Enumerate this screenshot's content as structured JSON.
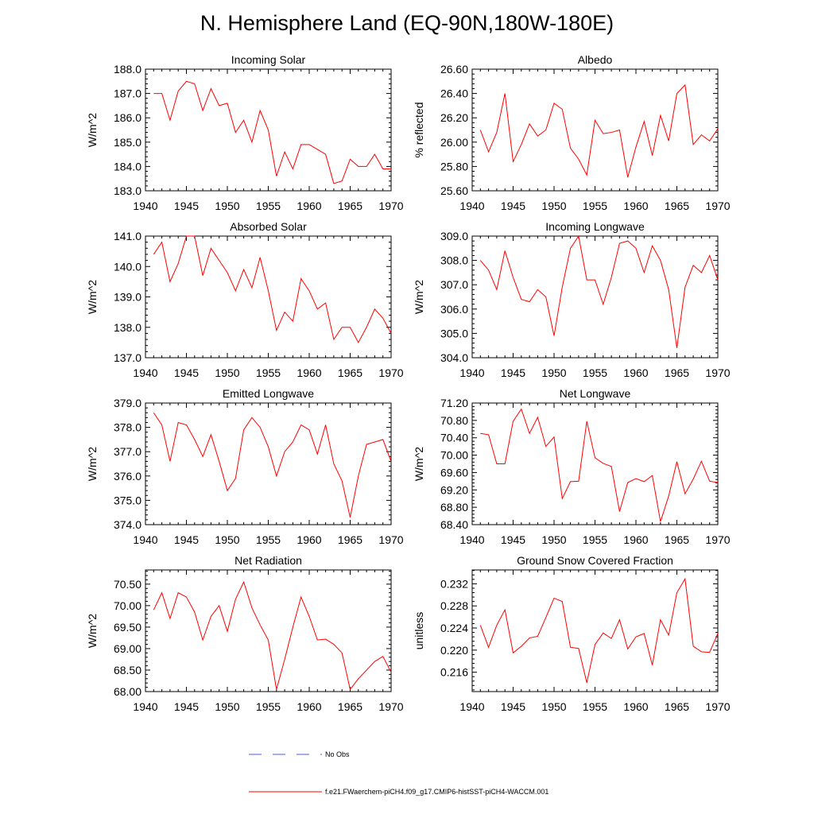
{
  "title": "N. Hemisphere Land (EQ-90N,180W-180E)",
  "legend": [
    {
      "label": "No Obs",
      "color": "#4b5ccc",
      "dash": "dashed"
    },
    {
      "label": "f.e21.FWaerchem-piCH4.f09_g17.CMIP6-histSST-piCH4-WACCM.001",
      "color": "#ff0000",
      "dash": "solid"
    }
  ],
  "chart_data": [
    {
      "type": "line",
      "title": "Incoming Solar",
      "ylabel": "W/m^2",
      "xlim": [
        1940,
        1970
      ],
      "ylim": [
        183.0,
        188.0
      ],
      "xticks": [
        "1940",
        "1945",
        "1950",
        "1955",
        "1960",
        "1965",
        "1970"
      ],
      "yticks": [
        "183.0",
        "184.0",
        "185.0",
        "186.0",
        "187.0",
        "188.0"
      ],
      "x": [
        1941,
        1942,
        1943,
        1944,
        1945,
        1946,
        1947,
        1948,
        1949,
        1950,
        1951,
        1952,
        1953,
        1954,
        1955,
        1956,
        1957,
        1958,
        1959,
        1960,
        1961,
        1962,
        1963,
        1964,
        1965,
        1966,
        1967,
        1968,
        1969,
        1970
      ],
      "series": [
        {
          "color": "#ff0000",
          "values": [
            187.0,
            187.0,
            185.9,
            187.1,
            187.5,
            187.4,
            186.3,
            187.2,
            186.5,
            186.6,
            185.4,
            185.9,
            185.0,
            186.3,
            185.5,
            183.6,
            184.6,
            183.9,
            184.9,
            184.9,
            184.7,
            184.5,
            183.3,
            183.4,
            184.3,
            184.0,
            184.0,
            184.5,
            183.9,
            183.9
          ]
        }
      ]
    },
    {
      "type": "line",
      "title": "Albedo",
      "ylabel": "% reflected",
      "xlim": [
        1940,
        1970
      ],
      "ylim": [
        25.6,
        26.6
      ],
      "xticks": [
        "1940",
        "1945",
        "1950",
        "1955",
        "1960",
        "1965",
        "1970"
      ],
      "yticks": [
        "25.60",
        "25.80",
        "26.00",
        "26.20",
        "26.40",
        "26.60"
      ],
      "x": [
        1941,
        1942,
        1943,
        1944,
        1945,
        1946,
        1947,
        1948,
        1949,
        1950,
        1951,
        1952,
        1953,
        1954,
        1955,
        1956,
        1957,
        1958,
        1959,
        1960,
        1961,
        1962,
        1963,
        1964,
        1965,
        1966,
        1967,
        1968,
        1969,
        1970
      ],
      "series": [
        {
          "color": "#ff0000",
          "values": [
            26.1,
            25.92,
            26.08,
            26.4,
            25.84,
            25.98,
            26.15,
            26.05,
            26.1,
            26.32,
            26.27,
            25.95,
            25.86,
            25.73,
            26.18,
            26.07,
            26.08,
            26.1,
            25.71,
            25.96,
            26.17,
            25.89,
            26.22,
            26.01,
            26.4,
            26.47,
            25.98,
            26.06,
            26.01,
            26.11
          ]
        }
      ]
    },
    {
      "type": "line",
      "title": "Absorbed Solar",
      "ylabel": "W/m^2",
      "xlim": [
        1940,
        1970
      ],
      "ylim": [
        137.0,
        141.0
      ],
      "xticks": [
        "1940",
        "1945",
        "1950",
        "1955",
        "1960",
        "1965",
        "1970"
      ],
      "yticks": [
        "137.0",
        "138.0",
        "139.0",
        "140.0",
        "141.0"
      ],
      "x": [
        1941,
        1942,
        1943,
        1944,
        1945,
        1946,
        1947,
        1948,
        1949,
        1950,
        1951,
        1952,
        1953,
        1954,
        1955,
        1956,
        1957,
        1958,
        1959,
        1960,
        1961,
        1962,
        1963,
        1964,
        1965,
        1966,
        1967,
        1968,
        1969,
        1970
      ],
      "series": [
        {
          "color": "#ff0000",
          "values": [
            140.4,
            140.8,
            139.5,
            140.1,
            141.0,
            141.0,
            139.7,
            140.6,
            140.2,
            139.8,
            139.2,
            139.9,
            139.3,
            140.3,
            139.2,
            137.9,
            138.5,
            138.2,
            139.6,
            139.2,
            138.6,
            138.8,
            137.6,
            138.0,
            138.0,
            137.5,
            138.0,
            138.6,
            138.3,
            137.8
          ]
        }
      ]
    },
    {
      "type": "line",
      "title": "Incoming Longwave",
      "ylabel": "W/m^2",
      "xlim": [
        1940,
        1970
      ],
      "ylim": [
        304.0,
        309.0
      ],
      "xticks": [
        "1940",
        "1945",
        "1950",
        "1955",
        "1960",
        "1965",
        "1970"
      ],
      "yticks": [
        "304.0",
        "305.0",
        "306.0",
        "307.0",
        "308.0",
        "309.0"
      ],
      "x": [
        1941,
        1942,
        1943,
        1944,
        1945,
        1946,
        1947,
        1948,
        1949,
        1950,
        1951,
        1952,
        1953,
        1954,
        1955,
        1956,
        1957,
        1958,
        1959,
        1960,
        1961,
        1962,
        1963,
        1964,
        1965,
        1966,
        1967,
        1968,
        1969,
        1970
      ],
      "series": [
        {
          "color": "#ff0000",
          "values": [
            308.0,
            307.6,
            306.8,
            308.4,
            307.3,
            306.4,
            306.3,
            306.8,
            306.5,
            304.9,
            306.9,
            308.5,
            309.0,
            307.2,
            307.2,
            306.2,
            307.3,
            308.7,
            308.8,
            308.5,
            307.5,
            308.6,
            308.0,
            306.8,
            304.4,
            306.9,
            307.8,
            307.5,
            308.2,
            307.2
          ]
        }
      ]
    },
    {
      "type": "line",
      "title": "Emitted Longwave",
      "ylabel": "W/m^2",
      "xlim": [
        1940,
        1970
      ],
      "ylim": [
        374.0,
        379.0
      ],
      "xticks": [
        "1940",
        "1945",
        "1950",
        "1955",
        "1960",
        "1965",
        "1970"
      ],
      "yticks": [
        "374.0",
        "375.0",
        "376.0",
        "377.0",
        "378.0",
        "379.0"
      ],
      "x": [
        1941,
        1942,
        1943,
        1944,
        1945,
        1946,
        1947,
        1948,
        1949,
        1950,
        1951,
        1952,
        1953,
        1954,
        1955,
        1956,
        1957,
        1958,
        1959,
        1960,
        1961,
        1962,
        1963,
        1964,
        1965,
        1966,
        1967,
        1968,
        1969,
        1970
      ],
      "series": [
        {
          "color": "#ff0000",
          "values": [
            378.6,
            378.1,
            376.6,
            378.2,
            378.1,
            377.5,
            376.8,
            377.7,
            376.6,
            375.4,
            375.9,
            377.9,
            378.4,
            378.0,
            377.2,
            376.0,
            377.0,
            377.4,
            378.1,
            377.9,
            376.9,
            378.1,
            376.5,
            375.8,
            374.3,
            376.0,
            377.3,
            377.4,
            377.5,
            376.6
          ]
        }
      ]
    },
    {
      "type": "line",
      "title": "Net Longwave",
      "ylabel": "W/m^2",
      "xlim": [
        1940,
        1970
      ],
      "ylim": [
        68.4,
        71.2
      ],
      "xticks": [
        "1940",
        "1945",
        "1950",
        "1955",
        "1960",
        "1965",
        "1970"
      ],
      "yticks": [
        "68.40",
        "68.80",
        "69.20",
        "69.60",
        "70.00",
        "70.40",
        "70.80",
        "71.20"
      ],
      "x": [
        1941,
        1942,
        1943,
        1944,
        1945,
        1946,
        1947,
        1948,
        1949,
        1950,
        1951,
        1952,
        1953,
        1954,
        1955,
        1956,
        1957,
        1958,
        1959,
        1960,
        1961,
        1962,
        1963,
        1964,
        1965,
        1966,
        1967,
        1968,
        1969,
        1970
      ],
      "series": [
        {
          "color": "#ff0000",
          "values": [
            70.5,
            70.47,
            69.8,
            69.8,
            70.78,
            71.06,
            70.5,
            70.87,
            70.2,
            70.42,
            69.0,
            69.39,
            69.4,
            70.78,
            69.94,
            69.81,
            69.74,
            68.7,
            69.37,
            69.46,
            69.39,
            69.53,
            68.47,
            69.06,
            69.85,
            69.11,
            69.45,
            69.86,
            69.4,
            69.37
          ]
        }
      ]
    },
    {
      "type": "line",
      "title": "Net Radiation",
      "ylabel": "W/m^2",
      "xlim": [
        1940,
        1970
      ],
      "ylim": [
        68.0,
        70.83
      ],
      "xticks": [
        "1940",
        "1945",
        "1950",
        "1955",
        "1960",
        "1965",
        "1970"
      ],
      "yticks": [
        "68.00",
        "68.50",
        "69.00",
        "69.50",
        "70.00",
        "70.50"
      ],
      "x": [
        1941,
        1942,
        1943,
        1944,
        1945,
        1946,
        1947,
        1948,
        1949,
        1950,
        1951,
        1952,
        1953,
        1954,
        1955,
        1956,
        1957,
        1958,
        1959,
        1960,
        1961,
        1962,
        1963,
        1964,
        1965,
        1966,
        1967,
        1968,
        1969,
        1970
      ],
      "series": [
        {
          "color": "#ff0000",
          "values": [
            69.9,
            70.3,
            69.7,
            70.3,
            70.2,
            69.85,
            69.2,
            69.75,
            70.0,
            69.4,
            70.15,
            70.55,
            69.95,
            69.55,
            69.2,
            68.05,
            68.75,
            69.5,
            70.2,
            69.75,
            69.2,
            69.22,
            69.1,
            68.9,
            68.05,
            68.3,
            68.5,
            68.7,
            68.82,
            68.45
          ]
        }
      ]
    },
    {
      "type": "line",
      "title": "Ground Snow Covered Fraction",
      "ylabel": "unitless",
      "xlim": [
        1940,
        1970
      ],
      "ylim": [
        0.2125,
        0.2345
      ],
      "xticks": [
        "1940",
        "1945",
        "1950",
        "1955",
        "1960",
        "1965",
        "1970"
      ],
      "yticks": [
        "0.216",
        "0.220",
        "0.224",
        "0.228",
        "0.232"
      ],
      "x": [
        1941,
        1942,
        1943,
        1944,
        1945,
        1946,
        1947,
        1948,
        1949,
        1950,
        1951,
        1952,
        1953,
        1954,
        1955,
        1956,
        1957,
        1958,
        1959,
        1960,
        1961,
        1962,
        1963,
        1964,
        1965,
        1966,
        1967,
        1968,
        1969,
        1970
      ],
      "series": [
        {
          "color": "#ff0000",
          "values": [
            0.2245,
            0.2205,
            0.2245,
            0.2273,
            0.2195,
            0.2207,
            0.2222,
            0.2225,
            0.2259,
            0.2294,
            0.2288,
            0.2205,
            0.2203,
            0.2141,
            0.221,
            0.2231,
            0.2221,
            0.2255,
            0.2202,
            0.2224,
            0.223,
            0.2173,
            0.2255,
            0.2227,
            0.2304,
            0.2329,
            0.2207,
            0.2197,
            0.2196,
            0.223
          ]
        }
      ]
    }
  ]
}
